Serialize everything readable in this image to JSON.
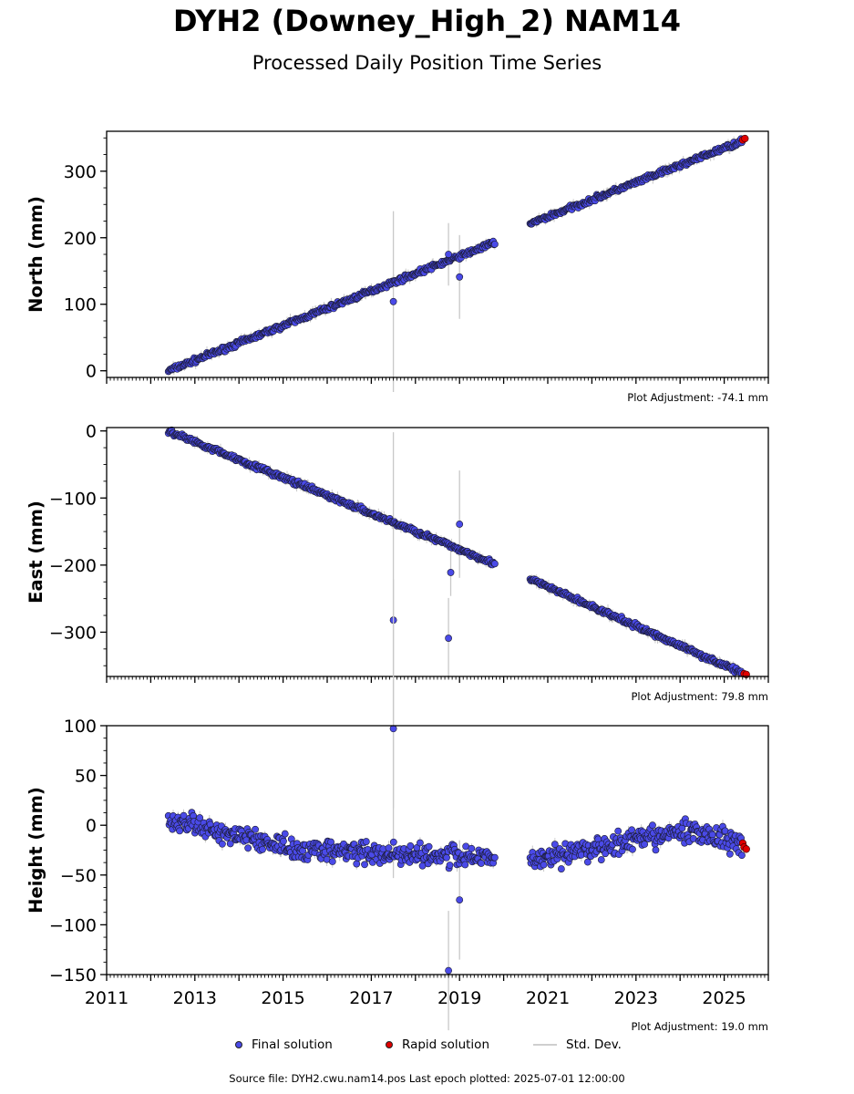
{
  "figure": {
    "title": "DYH2 (Downey_High_2) NAM14",
    "subtitle": "Processed Daily Position Time Series",
    "footer": "Source file: DYH2.cwu.nam14.pos  Last epoch plotted: 2025-07-01 12:00:00"
  },
  "legend": {
    "final_label": "Final solution",
    "rapid_label": "Rapid solution",
    "stddev_label": "Std. Dev."
  },
  "colors": {
    "final": "#4a4ae8",
    "rapid": "#e00000",
    "stddev": "#c8c8c8",
    "marker_edge": "#1a1a2e"
  },
  "chart_data": [
    {
      "type": "scatter",
      "ylabel": "North (mm)",
      "adjustment": "Plot Adjustment: -74.1 mm",
      "xlim": [
        2011,
        2026
      ],
      "ylim": [
        -10,
        360
      ],
      "yticks": [
        0,
        100,
        200,
        300
      ],
      "ytick_labels": [
        "0",
        "100",
        "200",
        "300"
      ],
      "xtick_labels": [],
      "series": [
        {
          "kind": "final",
          "segments": [
            {
              "x": [
                2012.4,
                2019.8
              ],
              "y": [
                0,
                193
              ],
              "scatter": 3
            },
            {
              "x": [
                2020.6,
                2025.4
              ],
              "y": [
                221,
                345
              ],
              "scatter": 3
            }
          ]
        },
        {
          "kind": "rapid",
          "x": [
            2025.42,
            2025.47
          ],
          "y": [
            347,
            349
          ]
        }
      ],
      "outliers": [
        {
          "x": 2017.5,
          "y": 104,
          "err": 136
        },
        {
          "x": 2018.75,
          "y": 175,
          "err": 47
        },
        {
          "x": 2019.0,
          "y": 141,
          "err": 63
        }
      ]
    },
    {
      "type": "scatter",
      "ylabel": "East (mm)",
      "adjustment": "Plot Adjustment: 79.8 mm",
      "xlim": [
        2011,
        2026
      ],
      "ylim": [
        -366,
        5
      ],
      "yticks": [
        0,
        -100,
        -200,
        -300
      ],
      "ytick_labels": [
        "0",
        "−100",
        "−200",
        "−300"
      ],
      "xtick_labels": [],
      "series": [
        {
          "kind": "final",
          "segments": [
            {
              "x": [
                2012.4,
                2019.8
              ],
              "y": [
                0,
                -198
              ],
              "scatter": 3
            },
            {
              "x": [
                2020.6,
                2025.4
              ],
              "y": [
                -221,
                -361
              ],
              "scatter": 3
            }
          ]
        },
        {
          "kind": "rapid",
          "x": [
            2025.45,
            2025.5
          ],
          "y": [
            -362,
            -363
          ]
        }
      ],
      "outliers": [
        {
          "x": 2017.5,
          "y": -282,
          "err": 280
        },
        {
          "x": 2018.75,
          "y": -309,
          "err": 60
        },
        {
          "x": 2018.8,
          "y": -211,
          "err": 35
        },
        {
          "x": 2019.0,
          "y": -139,
          "err": 80
        }
      ]
    },
    {
      "type": "scatter",
      "ylabel": "Height (mm)",
      "adjustment": "Plot Adjustment: 19.0 mm",
      "xlim": [
        2011,
        2026
      ],
      "ylim": [
        -150,
        100
      ],
      "yticks": [
        100,
        50,
        0,
        -50,
        -100,
        -150
      ],
      "ytick_labels": [
        "100",
        "50",
        "0",
        "−50",
        "−100",
        "−150"
      ],
      "xtick_labels": [
        "2011",
        "2013",
        "2015",
        "2017",
        "2019",
        "2021",
        "2023",
        "2025"
      ],
      "series": [
        {
          "kind": "final",
          "segments": [
            {
              "x": [
                2012.4,
                2015.5
              ],
              "y": [
                5,
                -25
              ],
              "scatter": 9
            },
            {
              "x": [
                2015.5,
                2019.8
              ],
              "y": [
                -25,
                -32
              ],
              "scatter": 9
            },
            {
              "x": [
                2020.6,
                2024.3
              ],
              "y": [
                -35,
                -5
              ],
              "scatter": 9
            },
            {
              "x": [
                2024.3,
                2025.4
              ],
              "y": [
                -5,
                -20
              ],
              "scatter": 9
            }
          ]
        },
        {
          "kind": "rapid",
          "x": [
            2025.42,
            2025.45,
            2025.5
          ],
          "y": [
            -18,
            -22,
            -24
          ]
        }
      ],
      "outliers": [
        {
          "x": 2017.5,
          "y": 97,
          "err": 150
        },
        {
          "x": 2018.75,
          "y": -146,
          "err": 60
        },
        {
          "x": 2019.0,
          "y": -75,
          "err": 60
        }
      ]
    }
  ]
}
